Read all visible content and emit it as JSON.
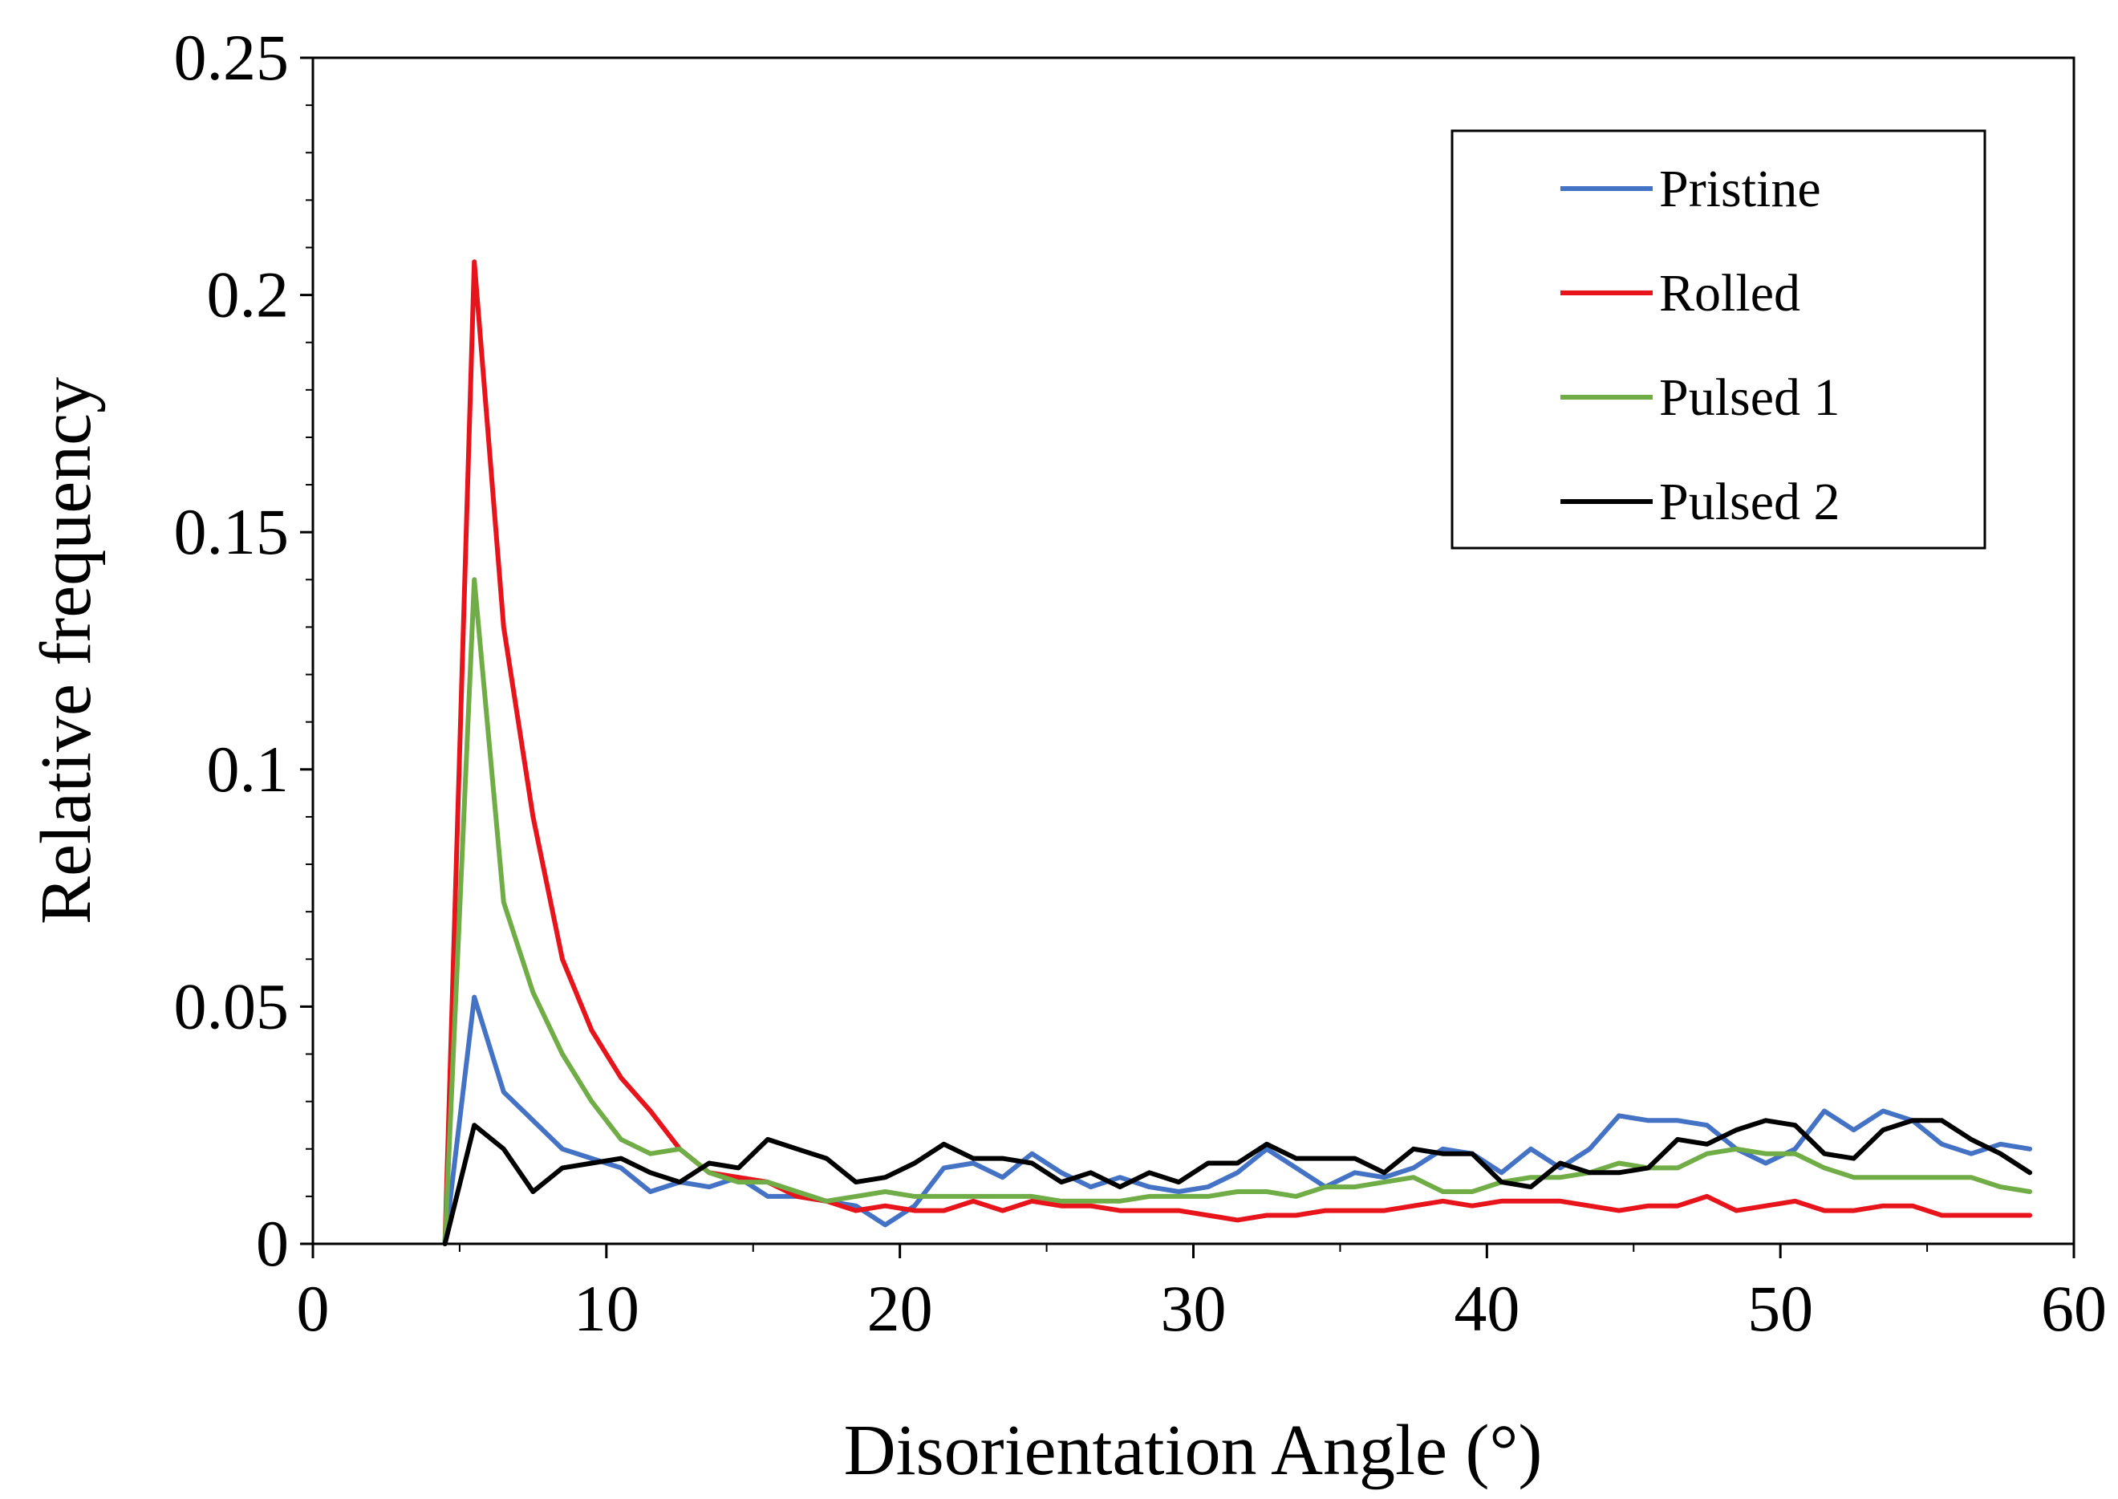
{
  "chart_data": {
    "type": "line",
    "title": "",
    "xlabel": "Disorientation Angle (°)",
    "ylabel": "Relative frequency",
    "xlim": [
      0,
      60
    ],
    "ylim": [
      0,
      0.25
    ],
    "xticks": [
      0,
      10,
      20,
      30,
      40,
      50,
      60
    ],
    "xtick_labels": [
      "0",
      "10",
      "20",
      "30",
      "40",
      "50",
      "60"
    ],
    "yticks": [
      0,
      0.05,
      0.1,
      0.15,
      0.2,
      0.25
    ],
    "ytick_labels": [
      "0",
      "0.05",
      "0.1",
      "0.15",
      "0.2",
      "0.25"
    ],
    "grid": false,
    "legend": {
      "position": "top-right",
      "entries": [
        "Pristine",
        "Rolled",
        "Pulsed 1",
        "Pulsed 2"
      ]
    },
    "x": [
      4.5,
      5.5,
      6.5,
      7.5,
      8.5,
      9.5,
      10.5,
      11.5,
      12.5,
      13.5,
      14.5,
      15.5,
      16.5,
      17.5,
      18.5,
      19.5,
      20.5,
      21.5,
      22.5,
      23.5,
      24.5,
      25.5,
      26.5,
      27.5,
      28.5,
      29.5,
      30.5,
      31.5,
      32.5,
      33.5,
      34.5,
      35.5,
      36.5,
      37.5,
      38.5,
      39.5,
      40.5,
      41.5,
      42.5,
      43.5,
      44.5,
      45.5,
      46.5,
      47.5,
      48.5,
      49.5,
      50.5,
      51.5,
      52.5,
      53.5,
      54.5,
      55.5,
      56.5,
      57.5,
      58.5
    ],
    "series": [
      {
        "name": "Pristine",
        "color": "#4472C4",
        "values": [
          0,
          0.052,
          0.032,
          0.026,
          0.02,
          0.018,
          0.016,
          0.011,
          0.013,
          0.012,
          0.014,
          0.01,
          0.01,
          0.009,
          0.008,
          0.004,
          0.008,
          0.016,
          0.017,
          0.014,
          0.019,
          0.015,
          0.012,
          0.014,
          0.012,
          0.011,
          0.012,
          0.015,
          0.02,
          0.016,
          0.012,
          0.015,
          0.014,
          0.016,
          0.02,
          0.019,
          0.015,
          0.02,
          0.016,
          0.02,
          0.027,
          0.026,
          0.026,
          0.025,
          0.02,
          0.017,
          0.02,
          0.028,
          0.024,
          0.028,
          0.026,
          0.021,
          0.019,
          0.021,
          0.02
        ]
      },
      {
        "name": "Rolled",
        "color": "#E8141C",
        "values": [
          0,
          0.207,
          0.13,
          0.09,
          0.06,
          0.045,
          0.035,
          0.028,
          0.02,
          0.015,
          0.014,
          0.013,
          0.01,
          0.009,
          0.007,
          0.008,
          0.007,
          0.007,
          0.009,
          0.007,
          0.009,
          0.008,
          0.008,
          0.007,
          0.007,
          0.007,
          0.006,
          0.005,
          0.006,
          0.006,
          0.007,
          0.007,
          0.007,
          0.008,
          0.009,
          0.008,
          0.009,
          0.009,
          0.009,
          0.008,
          0.007,
          0.008,
          0.008,
          0.01,
          0.007,
          0.008,
          0.009,
          0.007,
          0.007,
          0.008,
          0.008,
          0.006,
          0.006,
          0.006,
          0.006
        ]
      },
      {
        "name": "Pulsed 1",
        "color": "#70AD47",
        "values": [
          0,
          0.14,
          0.072,
          0.053,
          0.04,
          0.03,
          0.022,
          0.019,
          0.02,
          0.015,
          0.013,
          0.013,
          0.011,
          0.009,
          0.01,
          0.011,
          0.01,
          0.01,
          0.01,
          0.01,
          0.01,
          0.009,
          0.009,
          0.009,
          0.01,
          0.01,
          0.01,
          0.011,
          0.011,
          0.01,
          0.012,
          0.012,
          0.013,
          0.014,
          0.011,
          0.011,
          0.013,
          0.014,
          0.014,
          0.015,
          0.017,
          0.016,
          0.016,
          0.019,
          0.02,
          0.019,
          0.019,
          0.016,
          0.014,
          0.014,
          0.014,
          0.014,
          0.014,
          0.012,
          0.011
        ]
      },
      {
        "name": "Pulsed 2",
        "color": "#000000",
        "values": [
          0,
          0.025,
          0.02,
          0.011,
          0.016,
          0.017,
          0.018,
          0.015,
          0.013,
          0.017,
          0.016,
          0.022,
          0.02,
          0.018,
          0.013,
          0.014,
          0.017,
          0.021,
          0.018,
          0.018,
          0.017,
          0.013,
          0.015,
          0.012,
          0.015,
          0.013,
          0.017,
          0.017,
          0.021,
          0.018,
          0.018,
          0.018,
          0.015,
          0.02,
          0.019,
          0.019,
          0.013,
          0.012,
          0.017,
          0.015,
          0.015,
          0.016,
          0.022,
          0.021,
          0.024,
          0.026,
          0.025,
          0.019,
          0.018,
          0.024,
          0.026,
          0.026,
          0.022,
          0.019,
          0.015
        ]
      }
    ]
  }
}
